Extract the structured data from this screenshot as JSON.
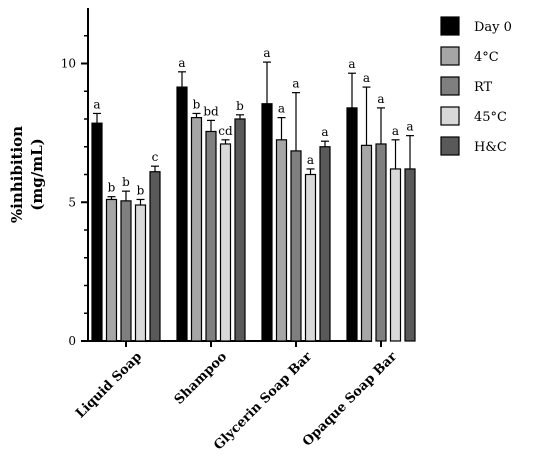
{
  "chart_data": {
    "type": "bar",
    "title": "",
    "ylabel": "%inhibition\n(mg/mL)",
    "ylabel_lines": [
      "%inhibition",
      "(mg/mL)"
    ],
    "xlabel": "",
    "ylim": [
      0,
      12
    ],
    "yticks": [
      0,
      5,
      10
    ],
    "grid": false,
    "legend_position": "right",
    "categories": [
      "Liquid Soap",
      "Shampoo",
      "Glycerin Soap Bar",
      "Opaque Soap Bar"
    ],
    "series": [
      {
        "name": "Day 0",
        "color": "#000000",
        "values": [
          7.85,
          9.15,
          8.55,
          8.4
        ],
        "errors": [
          0.35,
          0.55,
          1.5,
          1.25
        ],
        "labels": [
          "a",
          "a",
          "a",
          "a"
        ]
      },
      {
        "name": "4°C",
        "color": "#a6a6a6",
        "values": [
          5.1,
          8.05,
          7.25,
          7.05
        ],
        "errors": [
          0.1,
          0.15,
          0.8,
          2.1
        ],
        "labels": [
          "b",
          "b",
          "a",
          "a"
        ]
      },
      {
        "name": "RT",
        "color": "#7f7f7f",
        "values": [
          5.05,
          7.55,
          6.85,
          7.1
        ],
        "errors": [
          0.35,
          0.4,
          2.1,
          1.3
        ],
        "labels": [
          "b",
          "bd",
          "a",
          "a"
        ]
      },
      {
        "name": "45°C",
        "color": "#d9d9d9",
        "values": [
          4.9,
          7.1,
          6.0,
          6.2
        ],
        "errors": [
          0.2,
          0.15,
          0.2,
          1.05
        ],
        "labels": [
          "b",
          "cd",
          "a",
          "a"
        ]
      },
      {
        "name": "H&C",
        "color": "#595959",
        "values": [
          6.1,
          8.0,
          7.0,
          6.2
        ],
        "errors": [
          0.2,
          0.15,
          0.2,
          1.2
        ],
        "labels": [
          "c",
          "b",
          "a",
          "a"
        ]
      }
    ]
  }
}
